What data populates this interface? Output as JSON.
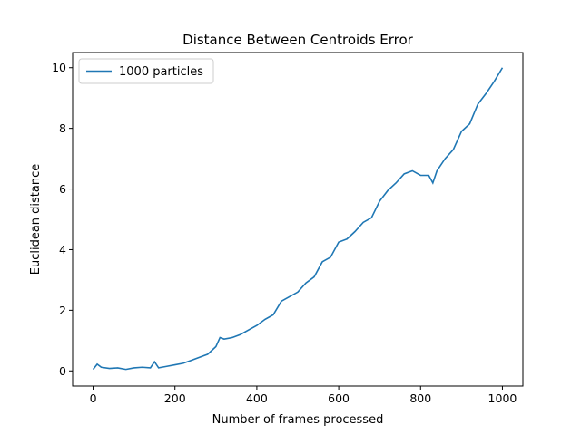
{
  "chart_data": {
    "type": "line",
    "title": "Distance Between Centroids Error",
    "xlabel": "Number of frames processed",
    "ylabel": "Euclidean distance",
    "x": [
      0,
      10,
      20,
      40,
      60,
      80,
      100,
      120,
      140,
      150,
      160,
      180,
      200,
      220,
      240,
      260,
      280,
      300,
      310,
      320,
      340,
      360,
      380,
      400,
      420,
      440,
      460,
      480,
      500,
      520,
      540,
      560,
      580,
      600,
      620,
      640,
      660,
      680,
      700,
      720,
      740,
      760,
      780,
      800,
      820,
      830,
      840,
      860,
      880,
      900,
      920,
      940,
      960,
      980,
      1000
    ],
    "series": [
      {
        "name": "1000 particles",
        "color": "#1f77b4",
        "values": [
          0.05,
          0.22,
          0.12,
          0.08,
          0.1,
          0.05,
          0.1,
          0.12,
          0.1,
          0.3,
          0.1,
          0.15,
          0.2,
          0.25,
          0.35,
          0.45,
          0.55,
          0.8,
          1.1,
          1.05,
          1.1,
          1.2,
          1.35,
          1.5,
          1.7,
          1.85,
          2.3,
          2.45,
          2.6,
          2.9,
          3.1,
          3.6,
          3.75,
          4.25,
          4.35,
          4.6,
          4.9,
          5.05,
          5.6,
          5.95,
          6.2,
          6.5,
          6.6,
          6.45,
          6.45,
          6.2,
          6.6,
          7.0,
          7.3,
          7.9,
          8.15,
          8.8,
          9.15,
          9.55,
          10.0
        ]
      }
    ],
    "xlim": [
      -50,
      1050
    ],
    "xticks": [
      0,
      200,
      400,
      600,
      800,
      1000
    ],
    "ylim": [
      -0.5,
      10.5
    ],
    "yticks": [
      0,
      2,
      4,
      6,
      8,
      10
    ],
    "legend": "upper left"
  }
}
